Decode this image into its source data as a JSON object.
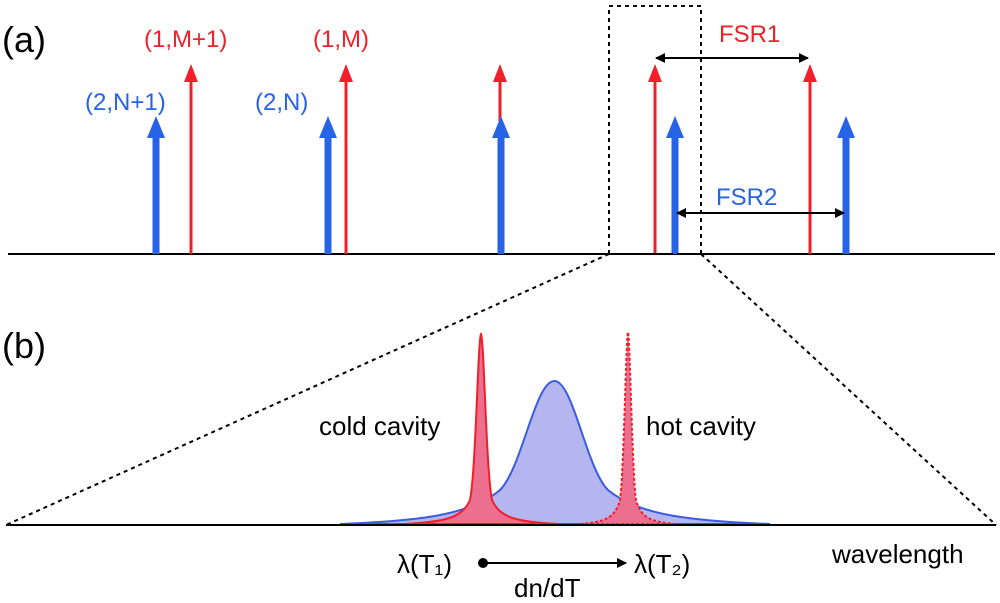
{
  "colors": {
    "red": "#f0202a",
    "blue": "#2763e6",
    "red_fill": "#ec6f8f",
    "blue_fill": "#b5b6ef",
    "axis": "#000000"
  },
  "panel_a": {
    "label": "(a)",
    "red_labels": [
      "(1,M+1)",
      "(1,M)"
    ],
    "blue_labels": [
      "(2,N+1)",
      "(2,N)"
    ],
    "fsr1": "FSR1",
    "fsr2": "FSR2"
  },
  "panel_b": {
    "label": "(b)",
    "cold": "cold cavity",
    "hot": "hot cavity",
    "lambda_t1": "λ(T₁)",
    "lambda_t2": "λ(T₂)",
    "dndt": "dn/dT",
    "wavelength": "wavelength"
  },
  "icons": {
    "red_arrow": "red-resonance-arrow-icon",
    "blue_arrow": "blue-resonance-arrow-icon",
    "double_arrow": "double-headed-arrow-icon"
  }
}
